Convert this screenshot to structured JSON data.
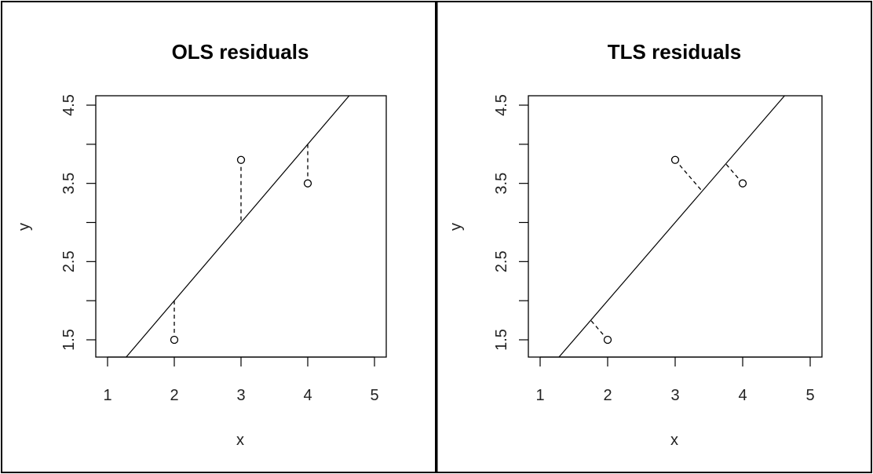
{
  "chart_data": [
    {
      "type": "scatter",
      "title": "OLS residuals",
      "xlabel": "x",
      "ylabel": "y",
      "xlim": [
        1,
        5
      ],
      "ylim": [
        1.5,
        4.5
      ],
      "x_ticks": [
        1,
        2,
        3,
        4,
        5
      ],
      "y_ticks": [
        1.5,
        2.5,
        3.5,
        4.5
      ],
      "x_tick_labels": [
        "1",
        "2",
        "3",
        "4",
        "5"
      ],
      "y_tick_labels": [
        "1.5",
        "2.5",
        "3.5",
        "4.5"
      ],
      "points": [
        {
          "x": 2,
          "y": 1.5
        },
        {
          "x": 3,
          "y": 3.8
        },
        {
          "x": 4,
          "y": 3.5
        }
      ],
      "fit_line": {
        "slope": 1.0,
        "intercept": 0.0
      },
      "residuals": [
        {
          "from": [
            2,
            1.5
          ],
          "to": [
            2,
            2.0
          ]
        },
        {
          "from": [
            3,
            3.8
          ],
          "to": [
            3,
            3.0
          ]
        },
        {
          "from": [
            4,
            3.5
          ],
          "to": [
            4,
            4.0
          ]
        }
      ],
      "grid": false
    },
    {
      "type": "scatter",
      "title": "TLS residuals",
      "xlabel": "x",
      "ylabel": "y",
      "xlim": [
        1,
        5
      ],
      "ylim": [
        1.5,
        4.5
      ],
      "x_ticks": [
        1,
        2,
        3,
        4,
        5
      ],
      "y_ticks": [
        1.5,
        2.5,
        3.5,
        4.5
      ],
      "x_tick_labels": [
        "1",
        "2",
        "3",
        "4",
        "5"
      ],
      "y_tick_labels": [
        "1.5",
        "2.5",
        "3.5",
        "4.5"
      ],
      "points": [
        {
          "x": 2,
          "y": 1.5
        },
        {
          "x": 3,
          "y": 3.8
        },
        {
          "x": 4,
          "y": 3.5
        }
      ],
      "fit_line": {
        "slope": 1.0,
        "intercept": 0.0
      },
      "residuals": [
        {
          "from": [
            2,
            1.5
          ],
          "to": [
            1.75,
            1.75
          ]
        },
        {
          "from": [
            3,
            3.8
          ],
          "to": [
            3.4,
            3.4
          ]
        },
        {
          "from": [
            4,
            3.5
          ],
          "to": [
            3.75,
            3.75
          ]
        }
      ],
      "grid": false
    }
  ]
}
